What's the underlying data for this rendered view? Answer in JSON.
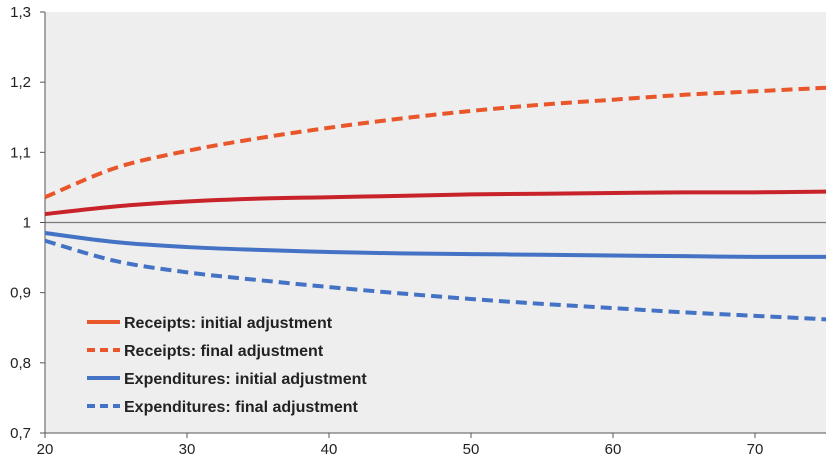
{
  "chart_data": {
    "type": "line",
    "title": "",
    "xlabel": "",
    "ylabel": "",
    "xlim": [
      20,
      75
    ],
    "ylim": [
      0.7,
      1.3
    ],
    "x_ticks": [
      20,
      30,
      40,
      50,
      60,
      70
    ],
    "x_tick_labels": [
      "20",
      "30",
      "40",
      "50",
      "60",
      "70"
    ],
    "y_ticks": [
      0.7,
      0.8,
      0.9,
      1.0,
      1.1,
      1.2,
      1.3
    ],
    "y_tick_labels": [
      "0,7",
      "0,8",
      "0,9",
      "1",
      "1,1",
      "1,2",
      "1,3"
    ],
    "reference_line": 1.0,
    "grid": false,
    "background": "#eeeeee",
    "legend_position": "bottom-left",
    "x": [
      20,
      25,
      30,
      35,
      40,
      45,
      50,
      55,
      60,
      65,
      70,
      75
    ],
    "series": [
      {
        "name": "Receipts: initial adjustment",
        "color": "#c8232a",
        "legend_color": "#e8562a",
        "style": "solid",
        "values": [
          1.012,
          1.023,
          1.03,
          1.034,
          1.036,
          1.038,
          1.04,
          1.041,
          1.042,
          1.043,
          1.043,
          1.044
        ]
      },
      {
        "name": "Receipts: final adjustment",
        "color": "#e8562a",
        "legend_color": "#e8562a",
        "style": "dashed",
        "values": [
          1.036,
          1.078,
          1.102,
          1.12,
          1.135,
          1.148,
          1.159,
          1.168,
          1.175,
          1.182,
          1.187,
          1.192
        ]
      },
      {
        "name": "Expenditures: initial adjustment",
        "color": "#4472c4",
        "legend_color": "#4472c4",
        "style": "solid",
        "values": [
          0.985,
          0.972,
          0.965,
          0.961,
          0.958,
          0.956,
          0.955,
          0.954,
          0.953,
          0.952,
          0.951,
          0.951
        ]
      },
      {
        "name": "Expenditures: final adjustment",
        "color": "#4472c4",
        "legend_color": "#4472c4",
        "style": "dashed",
        "values": [
          0.974,
          0.945,
          0.929,
          0.918,
          0.908,
          0.899,
          0.891,
          0.884,
          0.878,
          0.872,
          0.867,
          0.862
        ]
      }
    ]
  }
}
